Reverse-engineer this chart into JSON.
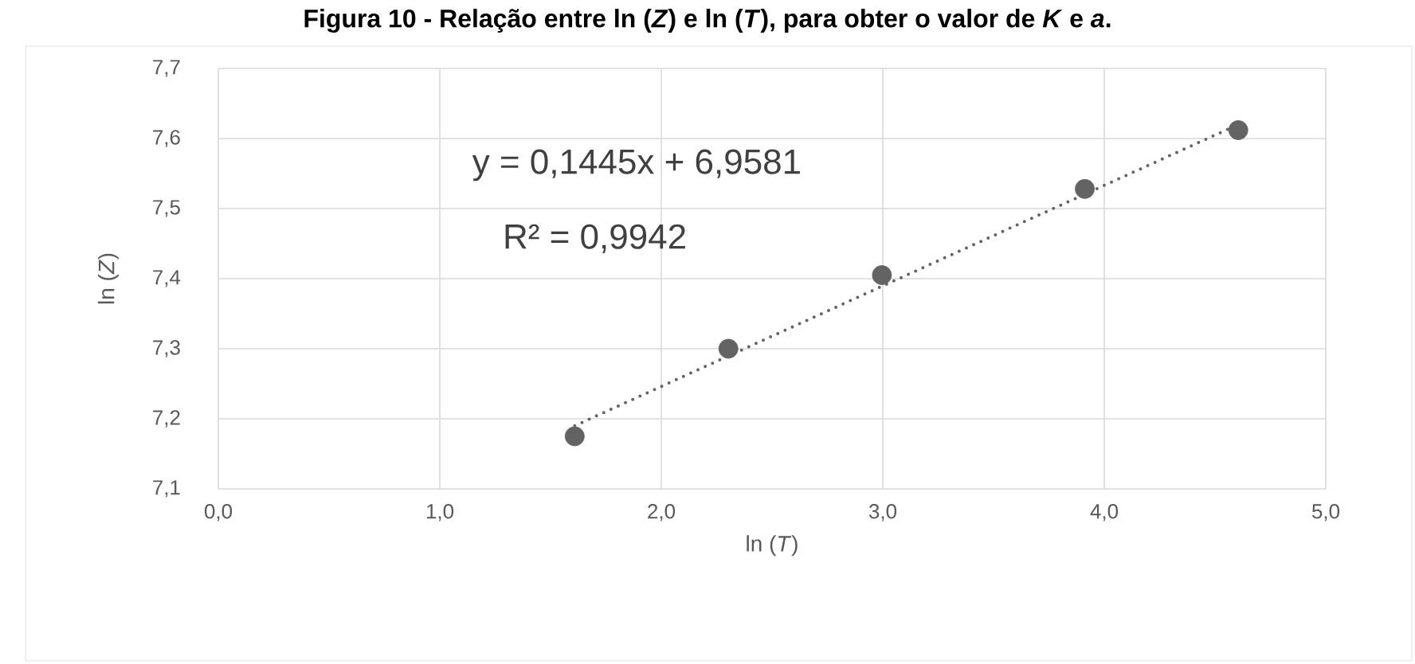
{
  "chart_data": {
    "type": "scatter",
    "title": "**Figura 10 - Relação entre ln (*Z*) e ln (*T*), para obter o valor de *K* e *a*.**",
    "xlabel": "ln (*T*)",
    "ylabel": "ln (*Z*)",
    "annotations": [
      "y = 0,1445x + 6,9581",
      "R² = 0,9942"
    ],
    "series": [
      {
        "color": "#636363",
        "marker": "circle",
        "x": [
          1.609,
          2.303,
          2.996,
          3.912,
          4.605
        ],
        "values": [
          7.175,
          7.3,
          7.405,
          7.528,
          7.612
        ]
      },
      {
        "type": "line",
        "color": "#636363",
        "marker": "none",
        "line_style": "dotted",
        "x": [
          1.609,
          4.605
        ],
        "values": [
          7.19,
          7.62
        ]
      }
    ],
    "xlim": [
      0,
      5
    ],
    "ylim": [
      7.1,
      7.7
    ],
    "xticks": [
      {
        "value": 0,
        "label": "0,0"
      },
      {
        "value": 1,
        "label": "1,0"
      },
      {
        "value": 2,
        "label": "2,0"
      },
      {
        "value": 3,
        "label": "3,0"
      },
      {
        "value": 4,
        "label": "4,0"
      },
      {
        "value": 5,
        "label": "5,0"
      }
    ],
    "yticks": [
      {
        "value": 7.1,
        "label": "7,1"
      },
      {
        "value": 7.2,
        "label": "7,2"
      },
      {
        "value": 7.3,
        "label": "7,3"
      },
      {
        "value": 7.4,
        "label": "7,4"
      },
      {
        "value": 7.5,
        "label": "7,5"
      },
      {
        "value": 7.6,
        "label": "7,6"
      },
      {
        "value": 7.7,
        "label": "7,7"
      }
    ],
    "grid": true
  }
}
